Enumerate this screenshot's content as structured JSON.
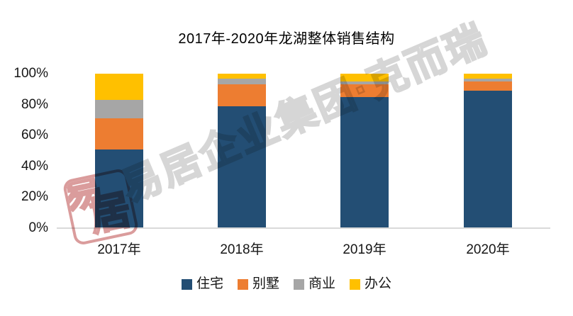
{
  "chart_data": {
    "type": "bar",
    "subtype": "stacked-100-percent",
    "title": "2017年-2020年龙湖整体销售结构",
    "categories": [
      "2017年",
      "2018年",
      "2019年",
      "2020年"
    ],
    "series": [
      {
        "name": "住宅",
        "color": "#234E74",
        "values": [
          51,
          79,
          85,
          89
        ]
      },
      {
        "name": "别墅",
        "color": "#ED7D31",
        "values": [
          20,
          14,
          8,
          6
        ]
      },
      {
        "name": "商业",
        "color": "#A6A6A6",
        "values": [
          12,
          4,
          2,
          2
        ]
      },
      {
        "name": "办公",
        "color": "#FFC000",
        "values": [
          17,
          3,
          5,
          3
        ]
      }
    ],
    "xlabel": "",
    "ylabel": "",
    "y_ticks": [
      "100%",
      "80%",
      "60%",
      "40%",
      "20%",
      "0%"
    ],
    "ylim": [
      0,
      100
    ],
    "grid": "baseline-only",
    "baseline_color": "#D9D9D9",
    "legend_position": "bottom",
    "legend_items": [
      "住宅",
      "别墅",
      "商业",
      "办公"
    ]
  },
  "watermark": {
    "text": "易居企业集团·克而瑞",
    "text_color": "#D6D6D6",
    "seal_text": "易居",
    "seal_color": "#DA9C9C"
  }
}
